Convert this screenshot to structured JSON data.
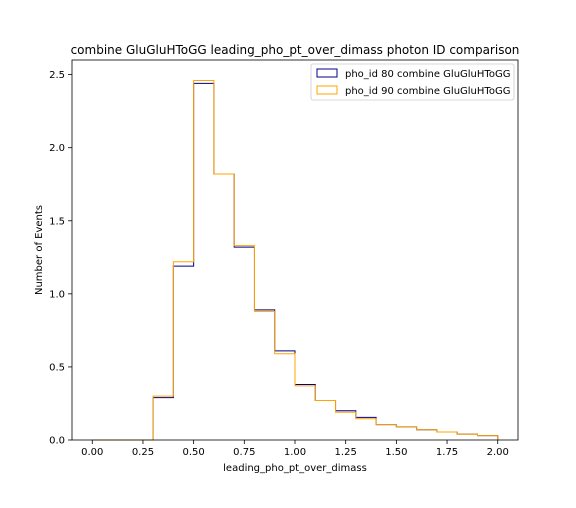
{
  "chart_data": {
    "type": "histogram",
    "title": "combine GluGluHToGG leading_pho_pt_over_dimass photon ID comparison",
    "xlabel": "leading_pho_pt_over_dimass",
    "ylabel": "Number of Events",
    "xlim": [
      -0.1,
      2.1
    ],
    "ylim": [
      0,
      2.6
    ],
    "xticks": [
      0.0,
      0.25,
      0.5,
      0.75,
      1.0,
      1.25,
      1.5,
      1.75,
      2.0
    ],
    "xtick_labels": [
      "0.00",
      "0.25",
      "0.50",
      "0.75",
      "1.00",
      "1.25",
      "1.50",
      "1.75",
      "2.00"
    ],
    "yticks": [
      0.0,
      0.5,
      1.0,
      1.5,
      2.0,
      2.5
    ],
    "ytick_labels": [
      "0.0",
      "0.5",
      "1.0",
      "1.5",
      "2.0",
      "2.5"
    ],
    "grid": false,
    "legend_position": "top-right",
    "bin_edges": [
      0.0,
      0.1,
      0.2,
      0.3,
      0.4,
      0.5,
      0.6,
      0.7,
      0.8,
      0.9,
      1.0,
      1.1,
      1.2,
      1.3,
      1.4,
      1.5,
      1.6,
      1.7,
      1.8,
      1.9,
      2.0
    ],
    "series": [
      {
        "name": "pho_id 80 combine GluGluHToGG",
        "color": "#00008b",
        "values": [
          0,
          0,
          0,
          0.29,
          1.19,
          2.44,
          1.82,
          1.32,
          0.89,
          0.61,
          0.38,
          0.27,
          0.2,
          0.155,
          0.105,
          0.09,
          0.07,
          0.055,
          0.04,
          0.03
        ]
      },
      {
        "name": "pho_id 90 combine GluGluHToGG",
        "color": "#ffa500",
        "values": [
          0,
          0,
          0,
          0.3,
          1.22,
          2.46,
          1.82,
          1.33,
          0.88,
          0.59,
          0.37,
          0.27,
          0.19,
          0.145,
          0.105,
          0.09,
          0.07,
          0.055,
          0.04,
          0.03
        ]
      }
    ]
  }
}
